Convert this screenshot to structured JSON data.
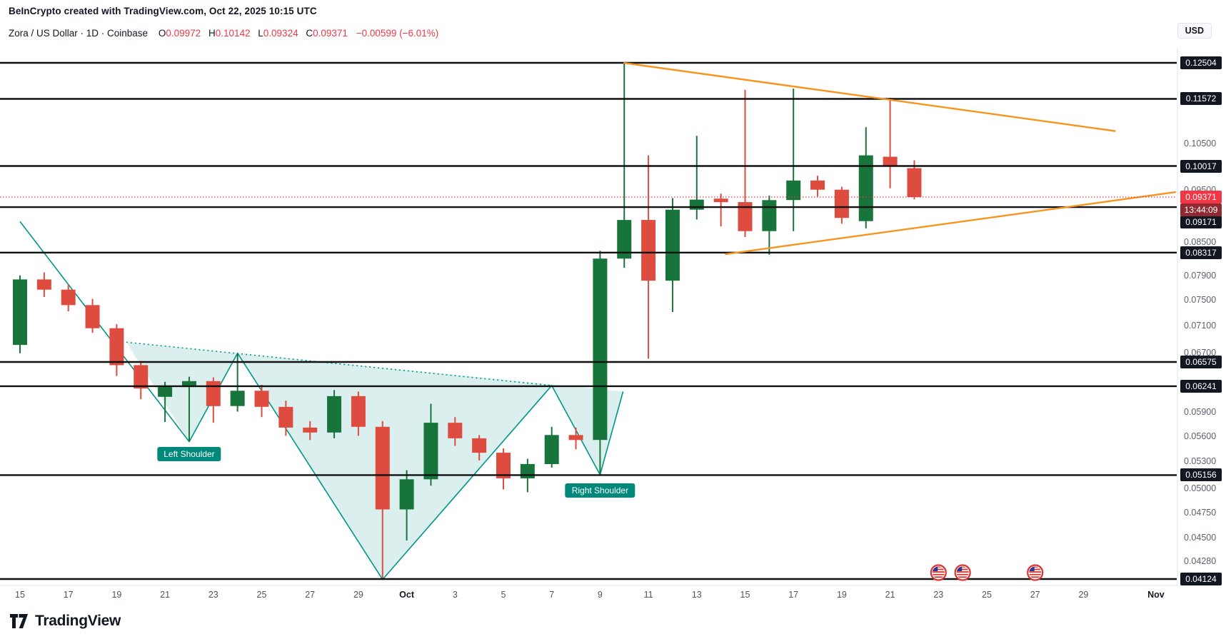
{
  "header": {
    "attribution": "BeInCrypto created with TradingView.com, Oct 22, 2025 10:15 UTC",
    "title": "Zora / US Dollar · 1D · Coinbase",
    "ohlc": {
      "o_label": "O",
      "o": "0.09972",
      "h_label": "H",
      "h": "0.10142",
      "l_label": "L",
      "l": "0.09324",
      "c_label": "C",
      "c": "0.09371",
      "change": "−0.00599 (−6.01%)"
    },
    "currency": "USD"
  },
  "footer": {
    "brand": "TradingView"
  },
  "chart_data": {
    "type": "candlestick",
    "title": "Zora / US Dollar, 1D, Coinbase",
    "y_axis": {
      "scale": "log",
      "min": 0.04124,
      "max": 0.12504,
      "ticks": [
        "0.10500",
        "0.09500",
        "0.08500",
        "0.07900",
        "0.07500",
        "0.07100",
        "0.06700",
        "0.05900",
        "0.05600",
        "0.05300",
        "0.05000",
        "0.04750",
        "0.04500",
        "0.04280"
      ]
    },
    "x_axis": {
      "ticks": [
        {
          "i": 0,
          "label": "15"
        },
        {
          "i": 2,
          "label": "17"
        },
        {
          "i": 4,
          "label": "19"
        },
        {
          "i": 6,
          "label": "21"
        },
        {
          "i": 8,
          "label": "23"
        },
        {
          "i": 10,
          "label": "25"
        },
        {
          "i": 12,
          "label": "27"
        },
        {
          "i": 14,
          "label": "29"
        },
        {
          "i": 16,
          "label": "Oct",
          "major": true
        },
        {
          "i": 18,
          "label": "3"
        },
        {
          "i": 20,
          "label": "5"
        },
        {
          "i": 22,
          "label": "7"
        },
        {
          "i": 24,
          "label": "9"
        },
        {
          "i": 26,
          "label": "11"
        },
        {
          "i": 28,
          "label": "13"
        },
        {
          "i": 30,
          "label": "15"
        },
        {
          "i": 32,
          "label": "17"
        },
        {
          "i": 34,
          "label": "19"
        },
        {
          "i": 36,
          "label": "21"
        },
        {
          "i": 38,
          "label": "23"
        },
        {
          "i": 40,
          "label": "25"
        },
        {
          "i": 42,
          "label": "27"
        },
        {
          "i": 44,
          "label": "29"
        },
        {
          "i": 47,
          "label": "Nov",
          "major": true
        }
      ]
    },
    "candles": [
      {
        "date": "Sep 15",
        "o": 0.0682,
        "h": 0.0792,
        "l": 0.067,
        "c": 0.0785
      },
      {
        "date": "Sep 16",
        "o": 0.0785,
        "h": 0.0797,
        "l": 0.0756,
        "c": 0.0768
      },
      {
        "date": "Sep 17",
        "o": 0.0768,
        "h": 0.0776,
        "l": 0.0733,
        "c": 0.0743
      },
      {
        "date": "Sep 18",
        "o": 0.0743,
        "h": 0.0753,
        "l": 0.07,
        "c": 0.0707
      },
      {
        "date": "Sep 19",
        "o": 0.0707,
        "h": 0.0713,
        "l": 0.0638,
        "c": 0.0653
      },
      {
        "date": "Sep 20",
        "o": 0.0653,
        "h": 0.0659,
        "l": 0.0607,
        "c": 0.0621
      },
      {
        "date": "Sep 21",
        "o": 0.061,
        "h": 0.063,
        "l": 0.0578,
        "c": 0.0623
      },
      {
        "date": "Sep 22",
        "o": 0.0623,
        "h": 0.0637,
        "l": 0.0554,
        "c": 0.0631
      },
      {
        "date": "Sep 23",
        "o": 0.0631,
        "h": 0.0636,
        "l": 0.0577,
        "c": 0.0598
      },
      {
        "date": "Sep 24",
        "o": 0.0598,
        "h": 0.067,
        "l": 0.0591,
        "c": 0.0618
      },
      {
        "date": "Sep 25",
        "o": 0.0618,
        "h": 0.0626,
        "l": 0.0584,
        "c": 0.0597
      },
      {
        "date": "Sep 26",
        "o": 0.0597,
        "h": 0.0605,
        "l": 0.0561,
        "c": 0.0571
      },
      {
        "date": "Sep 27",
        "o": 0.0571,
        "h": 0.0579,
        "l": 0.0556,
        "c": 0.0565
      },
      {
        "date": "Sep 28",
        "o": 0.0565,
        "h": 0.0619,
        "l": 0.0558,
        "c": 0.0611
      },
      {
        "date": "Sep 29",
        "o": 0.0611,
        "h": 0.0617,
        "l": 0.0561,
        "c": 0.0572
      },
      {
        "date": "Sep 30",
        "o": 0.0572,
        "h": 0.0579,
        "l": 0.0412,
        "c": 0.0479
      },
      {
        "date": "Oct 1",
        "o": 0.0479,
        "h": 0.0521,
        "l": 0.0448,
        "c": 0.0511
      },
      {
        "date": "Oct 2",
        "o": 0.0511,
        "h": 0.0601,
        "l": 0.0504,
        "c": 0.0577
      },
      {
        "date": "Oct 3",
        "o": 0.0577,
        "h": 0.0584,
        "l": 0.0549,
        "c": 0.0558
      },
      {
        "date": "Oct 4",
        "o": 0.0558,
        "h": 0.0562,
        "l": 0.0532,
        "c": 0.0541
      },
      {
        "date": "Oct 5",
        "o": 0.0541,
        "h": 0.0546,
        "l": 0.05,
        "c": 0.0512
      },
      {
        "date": "Oct 6",
        "o": 0.0512,
        "h": 0.0534,
        "l": 0.0497,
        "c": 0.0528
      },
      {
        "date": "Oct 7",
        "o": 0.0528,
        "h": 0.0572,
        "l": 0.0524,
        "c": 0.0562
      },
      {
        "date": "Oct 8",
        "o": 0.0562,
        "h": 0.0571,
        "l": 0.0545,
        "c": 0.0556
      },
      {
        "date": "Oct 9",
        "o": 0.0556,
        "h": 0.0835,
        "l": 0.0516,
        "c": 0.0821
      },
      {
        "date": "Oct 10",
        "o": 0.0821,
        "h": 0.12504,
        "l": 0.0805,
        "c": 0.0892
      },
      {
        "date": "Oct 11",
        "o": 0.0892,
        "h": 0.1025,
        "l": 0.0662,
        "c": 0.0783
      },
      {
        "date": "Oct 12",
        "o": 0.0783,
        "h": 0.0935,
        "l": 0.0732,
        "c": 0.0912
      },
      {
        "date": "Oct 13",
        "o": 0.0912,
        "h": 0.1069,
        "l": 0.0893,
        "c": 0.0932
      },
      {
        "date": "Oct 14",
        "o": 0.0934,
        "h": 0.0944,
        "l": 0.088,
        "c": 0.0927
      },
      {
        "date": "Oct 15",
        "o": 0.0927,
        "h": 0.118,
        "l": 0.086,
        "c": 0.0871
      },
      {
        "date": "Oct 16",
        "o": 0.0871,
        "h": 0.094,
        "l": 0.0828,
        "c": 0.0931
      },
      {
        "date": "Oct 17",
        "o": 0.0931,
        "h": 0.1183,
        "l": 0.0871,
        "c": 0.0971
      },
      {
        "date": "Oct 18",
        "o": 0.0971,
        "h": 0.0981,
        "l": 0.0938,
        "c": 0.0952
      },
      {
        "date": "Oct 19",
        "o": 0.0952,
        "h": 0.0958,
        "l": 0.0885,
        "c": 0.0896
      },
      {
        "date": "Oct 20",
        "o": 0.089,
        "h": 0.1089,
        "l": 0.0876,
        "c": 0.1025
      },
      {
        "date": "Oct 21",
        "o": 0.1022,
        "h": 0.116,
        "l": 0.0955,
        "c": 0.1002
      },
      {
        "date": "Oct 22",
        "o": 0.09972,
        "h": 0.10142,
        "l": 0.09324,
        "c": 0.09371
      }
    ],
    "levels": [
      {
        "value": 0.12504,
        "label": "0.12504"
      },
      {
        "value": 0.11572,
        "label": "0.11572"
      },
      {
        "value": 0.10017,
        "label": "0.10017"
      },
      {
        "value": 0.09171,
        "label": "0.09171",
        "label_dy": 21
      },
      {
        "value": 0.08317,
        "label": "0.08317"
      },
      {
        "value": 0.06575,
        "label": "0.06575"
      },
      {
        "value": 0.06241,
        "label": "0.06241"
      },
      {
        "value": 0.05156,
        "label": "0.05156"
      },
      {
        "value": 0.04124,
        "label": "0.04124"
      }
    ],
    "current_price": {
      "value": 0.09371,
      "label": "0.09371",
      "countdown": "13:44:09"
    },
    "trendlines": [
      {
        "from": {
          "i": 25,
          "p": 0.125
        },
        "to": {
          "i": 45.3,
          "p": 0.108
        }
      },
      {
        "from": {
          "i": 29.2,
          "p": 0.0829
        },
        "to": {
          "i": 47.8,
          "p": 0.0947
        }
      }
    ],
    "pattern": {
      "name": "Inverse Head and Shoulders",
      "fill_points": [
        [
          4.4,
          0.0686
        ],
        [
          7,
          0.0554
        ],
        [
          9,
          0.067
        ],
        [
          15,
          0.0412
        ],
        [
          22,
          0.0625
        ],
        [
          24,
          0.0516
        ],
        [
          24.95,
          0.0617
        ]
      ],
      "outline_points": [
        [
          0,
          0.0889
        ],
        [
          7,
          0.0554
        ],
        [
          9,
          0.067
        ],
        [
          15,
          0.0412
        ],
        [
          22,
          0.0625
        ],
        [
          24,
          0.0516
        ],
        [
          24.95,
          0.0617
        ]
      ],
      "neckline": [
        [
          4.4,
          0.0686
        ],
        [
          22,
          0.0625
        ]
      ],
      "labels": [
        {
          "text": "Left Shoulder",
          "i": 7,
          "p": 0.0539
        },
        {
          "text": "Right Shoulder",
          "i": 24,
          "p": 0.0499
        }
      ]
    },
    "events": [
      {
        "i": 38,
        "type": "us-flag"
      },
      {
        "i": 39,
        "type": "us-flag"
      },
      {
        "i": 42,
        "type": "us-flag"
      }
    ],
    "colors": {
      "up": "#17753c",
      "down": "#de4b3f",
      "pattern": "#009688",
      "pattern_fill": "rgba(0,150,136,0.14)",
      "pattern_badge": "#00897b",
      "trendline": "#f7941d",
      "level_line": "#111111",
      "current_line": "#f23645",
      "current_badge": "#f23645",
      "countdown_badge": "#8f2a33",
      "level_badge": "#131722",
      "event_ring": "#e03131"
    }
  }
}
